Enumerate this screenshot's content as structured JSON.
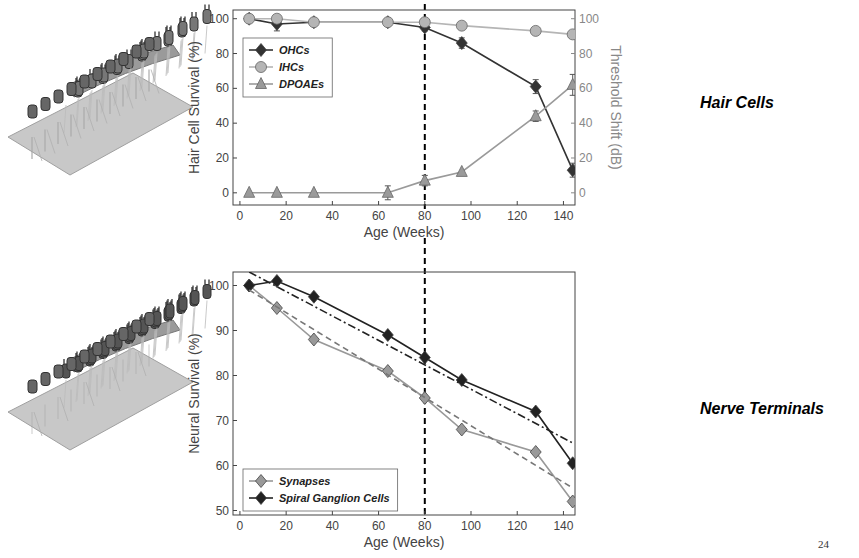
{
  "chart_data": [
    {
      "type": "line",
      "x": [
        4,
        16,
        32,
        64,
        80,
        96,
        128,
        144
      ],
      "xlabel": "Age (Weeks)",
      "ylabel": "Hair Cell Survival (%)",
      "y2label": "Threshold Shift (dB)",
      "xlim": [
        -3,
        145
      ],
      "xticks": [
        0,
        20,
        40,
        60,
        80,
        100,
        120,
        140
      ],
      "ylim": [
        -7,
        105
      ],
      "yticks": [
        0,
        20,
        40,
        60,
        80,
        100
      ],
      "y2lim": [
        -7,
        105
      ],
      "y2ticks": [
        0,
        20,
        40,
        60,
        80,
        100
      ],
      "legend": "upper left",
      "annotation": "Hair Cells",
      "vline": 80,
      "series": [
        {
          "name": "OHCs",
          "color": "#333333",
          "marker": "diamond",
          "values": [
            100,
            97,
            98,
            98,
            95,
            86,
            61,
            13
          ],
          "errors": [
            null,
            4,
            1,
            1,
            2,
            3,
            4,
            4
          ]
        },
        {
          "name": "IHCs",
          "color": "#b5b5b5",
          "marker": "circle",
          "values": [
            100,
            100,
            98,
            98,
            98,
            96,
            93,
            91
          ],
          "errors": [
            null,
            2,
            null,
            null,
            null,
            null,
            null,
            null
          ]
        },
        {
          "name": "DPOAEs",
          "color": "#9a9a9a",
          "marker": "triangle",
          "axis": "y2",
          "values": [
            0,
            0,
            0,
            0,
            7,
            12,
            44,
            62
          ],
          "errors": [
            null,
            null,
            null,
            4,
            3,
            null,
            3,
            6
          ]
        }
      ]
    },
    {
      "type": "line",
      "x": [
        4,
        16,
        32,
        64,
        80,
        96,
        128,
        144
      ],
      "xlabel": "Age (Weeks)",
      "ylabel": "Neural Survival (%)",
      "xlim": [
        -3,
        145
      ],
      "xticks": [
        0,
        20,
        40,
        60,
        80,
        100,
        120,
        140
      ],
      "ylim": [
        49,
        103
      ],
      "yticks": [
        50,
        60,
        70,
        80,
        90,
        100
      ],
      "legend": "lower left",
      "annotation": "Nerve Terminals",
      "vline": 80,
      "series": [
        {
          "name": "Synapses",
          "color": "#999999",
          "marker": "diamond",
          "values": [
            100,
            95,
            88,
            81,
            75,
            68,
            63,
            52
          ]
        },
        {
          "name": "Spiral Ganglion Cells",
          "color": "#222222",
          "marker": "diamond",
          "values": [
            100,
            101,
            97.5,
            89,
            84,
            79,
            72,
            60.5
          ]
        },
        {
          "color": "#777777",
          "line_style": "dashed",
          "marker": "none",
          "x": [
            4,
            144
          ],
          "values": [
            99,
            55
          ]
        },
        {
          "color": "#222222",
          "line_style": "dashdot",
          "marker": "none",
          "x": [
            4,
            144
          ],
          "values": [
            103,
            65
          ]
        }
      ]
    }
  ],
  "page_number": "24"
}
